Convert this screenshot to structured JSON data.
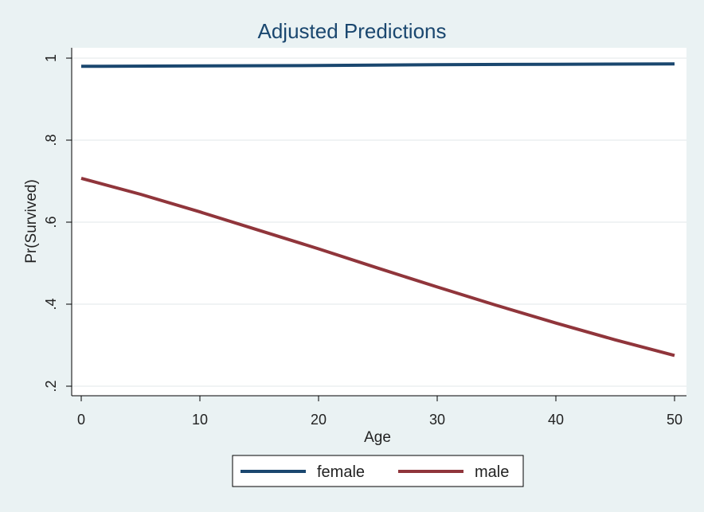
{
  "chart_data": {
    "type": "line",
    "title": "Adjusted Predictions",
    "xlabel": "Age",
    "ylabel": "Pr(Survived)",
    "xlim": [
      0,
      50
    ],
    "ylim": [
      0.2,
      1.0
    ],
    "x_ticks": [
      0,
      10,
      20,
      30,
      40,
      50
    ],
    "x_tick_labels": [
      "0",
      "10",
      "20",
      "30",
      "40",
      "50"
    ],
    "y_ticks": [
      0.2,
      0.4,
      0.6,
      0.8,
      1.0
    ],
    "y_tick_labels": [
      ".2",
      ".4",
      ".6",
      ".8",
      "1"
    ],
    "grid": true,
    "legend_position": "bottom",
    "series": [
      {
        "name": "female",
        "color": "#1a476f",
        "x": [
          0,
          10,
          20,
          30,
          40,
          50
        ],
        "y": [
          0.98,
          0.981,
          0.982,
          0.984,
          0.985,
          0.986
        ]
      },
      {
        "name": "male",
        "color": "#90353b",
        "x": [
          0,
          5,
          10,
          15,
          20,
          25,
          30,
          35,
          40,
          45,
          50
        ],
        "y": [
          0.707,
          0.668,
          0.625,
          0.58,
          0.535,
          0.488,
          0.442,
          0.397,
          0.354,
          0.313,
          0.275
        ]
      }
    ]
  }
}
